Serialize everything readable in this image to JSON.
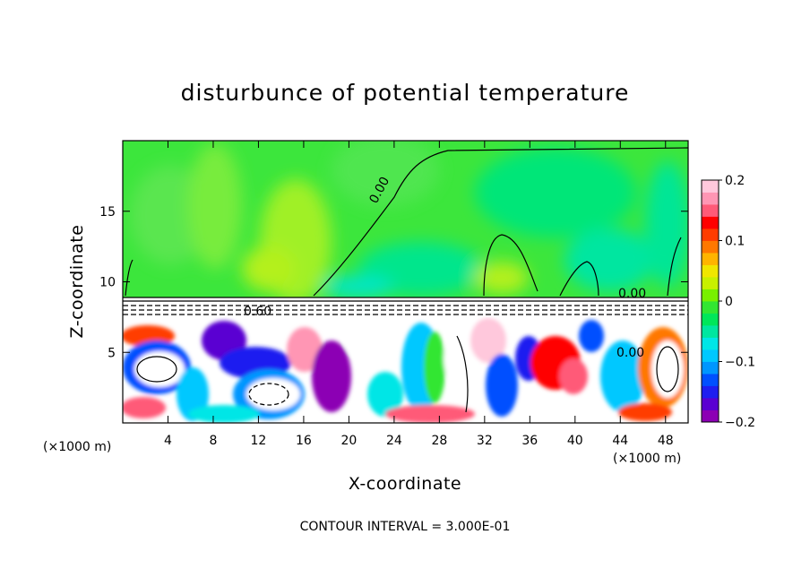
{
  "chart_data": {
    "type": "heatmap",
    "title": "disturbunce of potential temperature",
    "xlabel": "X-coordinate",
    "ylabel": "Z-coordinate",
    "x_unit": "(×1000 m)",
    "x_unit_right": "(×1000 m)",
    "xlim": [
      0,
      50
    ],
    "ylim": [
      0,
      20
    ],
    "x_ticks": [
      4,
      8,
      12,
      16,
      20,
      24,
      28,
      32,
      36,
      40,
      44,
      48
    ],
    "y_ticks": [
      5,
      10,
      15
    ],
    "colorbar": {
      "range": [
        -0.2,
        0.2
      ],
      "ticks": [
        "0.2",
        "0.1",
        "0",
        "−0.1",
        "−0.2"
      ],
      "colors": [
        "#8c00b4",
        "#5a00d2",
        "#1e1ef0",
        "#0050ff",
        "#0096ff",
        "#00c8ff",
        "#00e6e6",
        "#00e6a0",
        "#00e65a",
        "#32e632",
        "#78f000",
        "#c8f000",
        "#f0e600",
        "#ffb400",
        "#ff7800",
        "#ff3c00",
        "#ff0000",
        "#ff5a78",
        "#ff96b4",
        "#ffc8dc"
      ]
    },
    "contour_labels": [
      "0.00",
      "0.60"
    ],
    "contour_interval_text": "CONTOUR INTERVAL = 3.000E-01"
  }
}
